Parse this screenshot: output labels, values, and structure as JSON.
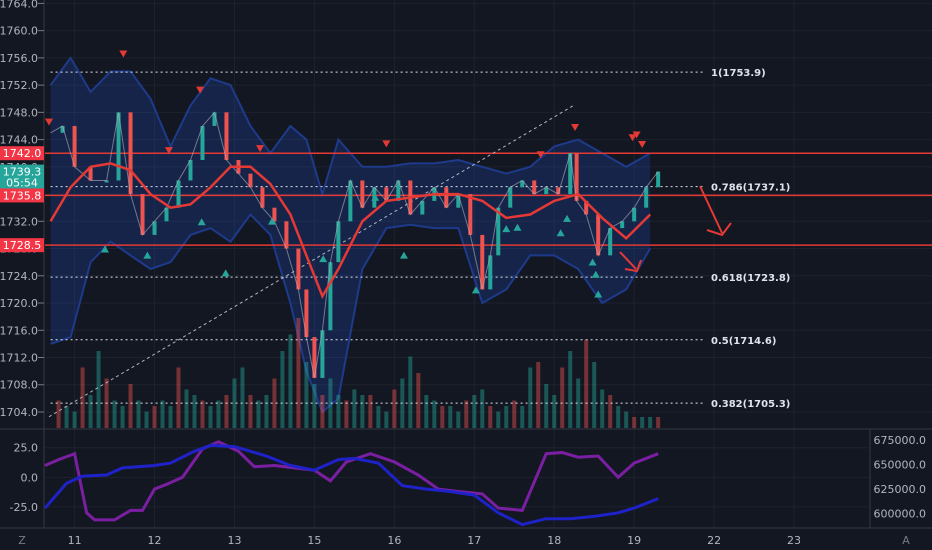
{
  "chart_data": [
    {
      "type": "candlestick",
      "panel": "price",
      "price_axis_ticks": [
        1764.0,
        1760.0,
        1756.0,
        1752.0,
        1748.0,
        1744.0,
        1740.0,
        1736.0,
        1732.0,
        1728.0,
        1724.0,
        1720.0,
        1716.0,
        1712.0,
        1708.0,
        1704.0
      ],
      "price_axis_labels": [
        "1764.0",
        "1760.0",
        "1756.0",
        "1752.0",
        "1748.0",
        "1744.0",
        "1740.0",
        "1736.0",
        "1732.0",
        "1728.0",
        "1724.0",
        "1720.0",
        "1716.0",
        "1712.0",
        "1708.0",
        "1704.0"
      ],
      "ylim": [
        1701.5,
        1764.5
      ],
      "x_axis_labels": [
        "11",
        "12",
        "13",
        "15",
        "16",
        "17",
        "18",
        "19",
        "22",
        "23"
      ],
      "x_axis_label_days": [
        1,
        2,
        3,
        4,
        5,
        6,
        7,
        8,
        9,
        10
      ],
      "xlim": [
        0.63,
        10.95
      ],
      "axis_badges": [
        {
          "label": "1742.0",
          "value": 1742.0,
          "color": "#f23645"
        },
        {
          "label": "1739.3",
          "value": 1739.3,
          "color": "#26a69a"
        },
        {
          "label": "05:54",
          "value": 1737.7,
          "color": "#26a69a"
        },
        {
          "label": "1735.8",
          "value": 1735.8,
          "color": "#f23645"
        },
        {
          "label": "1728.5",
          "value": 1728.5,
          "color": "#f23645"
        }
      ],
      "horizontal_lines": [
        1742.0,
        1735.8,
        1728.5
      ],
      "fibonacci_levels": [
        {
          "label": "1(1753.9)",
          "value": 1753.9
        },
        {
          "label": "0.786(1737.1)",
          "value": 1737.1
        },
        {
          "label": "0.618(1723.8)",
          "value": 1723.8
        },
        {
          "label": "0.5(1714.6)",
          "value": 1714.6
        },
        {
          "label": "0.382(1705.3)",
          "value": 1705.3
        }
      ],
      "trend_line": {
        "x": [
          0.68,
          7.24
        ],
        "y": [
          1703.3,
          1749.0
        ]
      },
      "price_path": {
        "x": [
          0.7,
          0.85,
          1.0,
          1.2,
          1.4,
          1.55,
          1.7,
          1.85,
          2.0,
          2.15,
          2.3,
          2.45,
          2.6,
          2.75,
          2.9,
          3.05,
          3.2,
          3.35,
          3.5,
          3.65,
          3.8,
          3.9,
          4.0,
          4.1,
          4.2,
          4.3,
          4.45,
          4.6,
          4.75,
          4.9,
          5.05,
          5.2,
          5.35,
          5.5,
          5.65,
          5.8,
          5.95,
          6.1,
          6.2,
          6.3,
          6.45,
          6.6,
          6.75,
          6.9,
          7.05,
          7.2,
          7.28,
          7.4,
          7.55,
          7.7,
          7.85,
          8.0,
          8.15,
          8.3
        ],
        "y": [
          1745.0,
          1746.0,
          1740.0,
          1738.0,
          1738.0,
          1748.0,
          1736.0,
          1730.0,
          1732.0,
          1734.0,
          1738.0,
          1741.0,
          1746.0,
          1748.0,
          1741.0,
          1739.0,
          1737.0,
          1734.0,
          1732.0,
          1728.0,
          1722.0,
          1715.0,
          1709.0,
          1716.0,
          1726.0,
          1732.0,
          1738.0,
          1734.0,
          1737.0,
          1735.0,
          1738.0,
          1733.0,
          1735.0,
          1737.0,
          1734.0,
          1736.0,
          1730.0,
          1722.0,
          1727.0,
          1734.0,
          1737.0,
          1738.0,
          1736.0,
          1737.0,
          1736.0,
          1742.0,
          1735.0,
          1733.0,
          1727.0,
          1731.0,
          1732.0,
          1734.0,
          1737.0,
          1739.3
        ]
      },
      "moving_average": {
        "x": [
          0.7,
          0.95,
          1.2,
          1.45,
          1.7,
          1.95,
          2.2,
          2.45,
          2.7,
          2.95,
          3.2,
          3.45,
          3.7,
          3.9,
          4.1,
          4.3,
          4.6,
          4.9,
          5.2,
          5.5,
          5.8,
          6.1,
          6.4,
          6.7,
          7.0,
          7.3,
          7.6,
          7.9,
          8.2
        ],
        "y": [
          1732.0,
          1737.0,
          1740.0,
          1740.5,
          1739.5,
          1736.0,
          1734.0,
          1734.5,
          1737.0,
          1740.0,
          1740.0,
          1737.5,
          1733.0,
          1727.0,
          1721.0,
          1725.0,
          1732.0,
          1735.0,
          1735.5,
          1736.0,
          1736.0,
          1735.0,
          1732.5,
          1733.0,
          1735.0,
          1736.0,
          1732.5,
          1729.5,
          1733.0
        ]
      },
      "bollinger_upper": {
        "x": [
          0.7,
          0.95,
          1.2,
          1.45,
          1.7,
          1.95,
          2.2,
          2.45,
          2.7,
          2.95,
          3.2,
          3.45,
          3.7,
          3.9,
          4.1,
          4.3,
          4.6,
          4.9,
          5.2,
          5.5,
          5.8,
          6.1,
          6.4,
          6.7,
          7.0,
          7.3,
          7.6,
          7.9,
          8.2
        ],
        "y": [
          1752.0,
          1756.0,
          1751.0,
          1754.0,
          1754.0,
          1750.0,
          1743.0,
          1749.0,
          1753.0,
          1752.0,
          1746.0,
          1742.0,
          1746.0,
          1744.0,
          1736.0,
          1744.0,
          1740.0,
          1740.0,
          1740.5,
          1740.5,
          1741.0,
          1740.0,
          1739.0,
          1740.0,
          1743.0,
          1744.0,
          1742.0,
          1740.0,
          1742.0
        ]
      },
      "bollinger_lower": {
        "x": [
          0.7,
          0.95,
          1.2,
          1.45,
          1.7,
          1.95,
          2.2,
          2.45,
          2.7,
          2.95,
          3.2,
          3.45,
          3.7,
          3.9,
          4.1,
          4.3,
          4.6,
          4.9,
          5.2,
          5.5,
          5.8,
          6.1,
          6.4,
          6.7,
          7.0,
          7.3,
          7.6,
          7.9,
          8.2
        ],
        "y": [
          1714.0,
          1715.0,
          1726.0,
          1729.0,
          1727.0,
          1725.0,
          1726.0,
          1730.0,
          1731.0,
          1729.0,
          1733.0,
          1730.0,
          1720.0,
          1710.0,
          1704.0,
          1706.0,
          1725.0,
          1731.0,
          1731.5,
          1731.0,
          1731.0,
          1720.0,
          1722.0,
          1727.0,
          1727.0,
          1725.0,
          1720.0,
          1722.0,
          1728.0
        ]
      },
      "sell_markers": {
        "x": [
          0.68,
          1.61,
          2.18,
          2.57,
          3.32,
          4.9,
          6.83,
          7.26,
          7.98,
          8.03,
          8.1
        ],
        "y": [
          1746.5,
          1756.5,
          1742.3,
          1751.2,
          1742.6,
          1743.3,
          1741.7,
          1745.7,
          1744.2,
          1744.6,
          1743.2
        ]
      },
      "buy_markers": {
        "x": [
          1.38,
          1.91,
          2.59,
          2.89,
          3.47,
          4.11,
          4.76,
          5.12,
          6.02,
          6.4,
          6.54,
          7.08,
          7.16,
          7.48,
          7.52,
          7.55
        ],
        "y": [
          1728.0,
          1727.1,
          1732.0,
          1724.5,
          1732.1,
          1726.6,
          1735.6,
          1727.1,
          1722.0,
          1731.0,
          1731.2,
          1730.4,
          1732.5,
          1726.1,
          1724.3,
          1721.4
        ]
      },
      "volume": {
        "x": [
          0.8,
          0.9,
          1.0,
          1.1,
          1.2,
          1.3,
          1.4,
          1.5,
          1.6,
          1.7,
          1.8,
          1.9,
          2.0,
          2.1,
          2.2,
          2.3,
          2.4,
          2.5,
          2.6,
          2.7,
          2.8,
          2.9,
          3.0,
          3.1,
          3.2,
          3.3,
          3.4,
          3.5,
          3.6,
          3.7,
          3.8,
          3.9,
          4.0,
          4.1,
          4.2,
          4.3,
          4.4,
          4.5,
          4.6,
          4.7,
          4.8,
          4.9,
          5.0,
          5.1,
          5.2,
          5.3,
          5.4,
          5.5,
          5.6,
          5.7,
          5.8,
          5.9,
          6.0,
          6.1,
          6.2,
          6.3,
          6.4,
          6.5,
          6.6,
          6.7,
          6.8,
          6.9,
          7.0,
          7.1,
          7.2,
          7.3,
          7.4,
          7.5,
          7.6,
          7.7,
          7.8,
          7.9,
          8.0,
          8.1,
          8.2,
          8.3
        ],
        "values": [
          0.25,
          0.2,
          0.15,
          0.55,
          0.3,
          0.7,
          0.45,
          0.25,
          0.2,
          0.4,
          0.25,
          0.15,
          0.2,
          0.25,
          0.2,
          0.55,
          0.35,
          0.3,
          0.25,
          0.2,
          0.25,
          0.3,
          0.45,
          0.55,
          0.3,
          0.25,
          0.3,
          0.45,
          0.7,
          0.85,
          1.0,
          0.6,
          0.4,
          0.3,
          0.45,
          0.3,
          0.25,
          0.35,
          0.3,
          0.3,
          0.2,
          0.15,
          0.35,
          0.45,
          0.65,
          0.5,
          0.3,
          0.25,
          0.2,
          0.2,
          0.15,
          0.25,
          0.3,
          0.35,
          0.2,
          0.15,
          0.2,
          0.25,
          0.2,
          0.55,
          0.6,
          0.4,
          0.3,
          0.55,
          0.7,
          0.45,
          0.8,
          0.6,
          0.35,
          0.3,
          0.2,
          0.15,
          0.1,
          0.1,
          0.1,
          0.1
        ]
      }
    },
    {
      "type": "line",
      "panel": "oscillator",
      "left_axis_labels": [
        "25.0",
        "0.0",
        "-25.0"
      ],
      "left_axis_ticks": [
        25.0,
        0.0,
        -25.0
      ],
      "right_axis_labels": [
        "675000.0",
        "650000.0",
        "625000.0",
        "600000.0"
      ],
      "right_axis_ticks": [
        675000.0,
        650000.0,
        625000.0,
        600000.0
      ],
      "ylim": [
        -42,
        40
      ],
      "series": [
        {
          "color": "#7b1fa2",
          "x": [
            0.63,
            0.8,
            1.0,
            1.15,
            1.25,
            1.5,
            1.7,
            1.85,
            2.0,
            2.15,
            2.35,
            2.6,
            2.8,
            3.05,
            3.25,
            3.5,
            3.75,
            4.0,
            4.2,
            4.4,
            4.7,
            5.0,
            5.3,
            5.55,
            5.8,
            6.1,
            6.3,
            6.6,
            6.9,
            7.1,
            7.3,
            7.55,
            7.8,
            8.0,
            8.3
          ],
          "y": [
            10,
            15,
            20,
            -30,
            -36,
            -36,
            -28,
            -28,
            -10,
            -6,
            0,
            24,
            30,
            22,
            9,
            10,
            8,
            6,
            -3,
            13,
            20,
            13,
            2,
            -10,
            -12,
            -14,
            -26,
            -28,
            20,
            21,
            17,
            18,
            0,
            12,
            20
          ]
        },
        {
          "color": "#1e22c8",
          "x": [
            0.63,
            0.9,
            1.1,
            1.4,
            1.6,
            2.0,
            2.2,
            2.5,
            2.7,
            3.0,
            3.2,
            3.4,
            3.7,
            4.0,
            4.3,
            4.5,
            4.8,
            5.1,
            5.4,
            5.7,
            6.0,
            6.3,
            6.6,
            6.9,
            7.2,
            7.5,
            7.8,
            8.0,
            8.3
          ],
          "y": [
            -26,
            -5,
            1,
            2,
            8,
            10,
            12,
            22,
            27,
            26,
            22,
            18,
            10,
            6,
            15,
            16,
            12,
            -7,
            -10,
            -12,
            -15,
            -30,
            -40,
            -35,
            -35,
            -33,
            -30,
            -26,
            -18
          ]
        }
      ]
    }
  ]
}
